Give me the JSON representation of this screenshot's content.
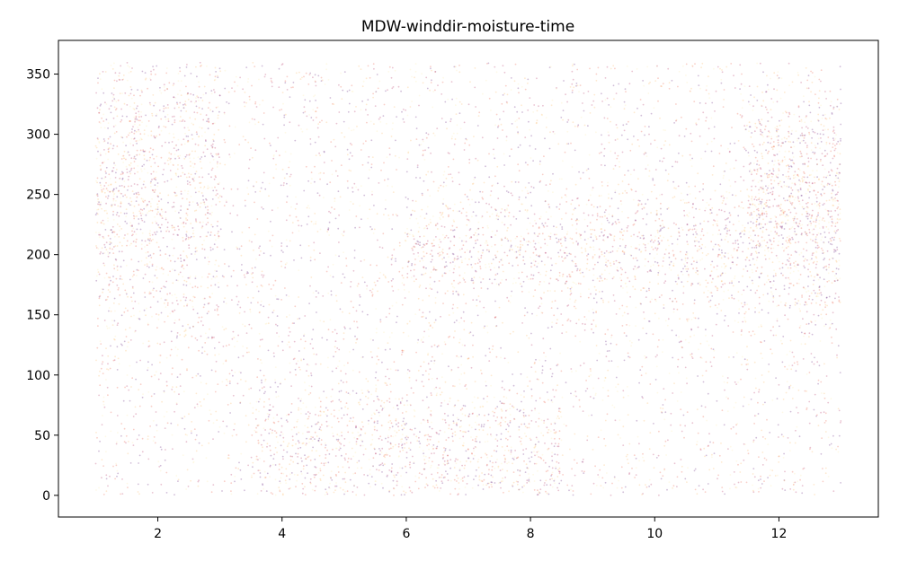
{
  "chart_data": {
    "type": "scatter",
    "title": "MDW-winddir-moisture-time",
    "xlabel": "",
    "ylabel": "",
    "xlim": [
      0.4,
      13.6
    ],
    "ylim": [
      -18,
      378
    ],
    "xticks": [
      2,
      4,
      6,
      8,
      10,
      12
    ],
    "yticks": [
      0,
      50,
      100,
      150,
      200,
      250,
      300,
      350
    ],
    "grid": false,
    "legend": "none",
    "x_range": [
      1,
      13
    ],
    "y_range": [
      0,
      360
    ],
    "colormap": [
      "#fde9a8",
      "#fbb35a",
      "#e8543a",
      "#b0245a",
      "#5b1374"
    ],
    "point_alpha": 0.28,
    "point_radius": 0.9,
    "density_bands": [
      {
        "x_from": 1,
        "x_to": 3,
        "y_center": 250,
        "y_spread": 55
      },
      {
        "x_from": 3.5,
        "x_to": 8.5,
        "y_center": 40,
        "y_spread": 30
      },
      {
        "x_from": 6,
        "x_to": 11.5,
        "y_center": 205,
        "y_spread": 25
      },
      {
        "x_from": 11.5,
        "x_to": 13,
        "y_center": 240,
        "y_spread": 45
      }
    ]
  }
}
